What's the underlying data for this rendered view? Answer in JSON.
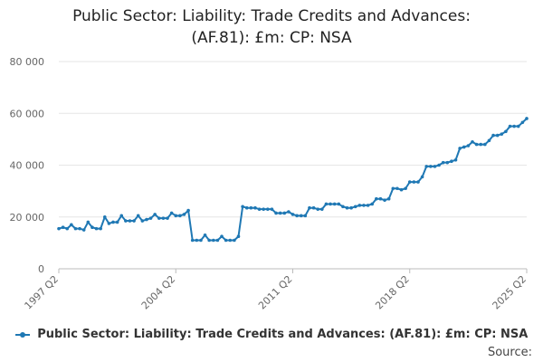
{
  "title_line1": "Public Sector: Liability: Trade Credits and Advances:",
  "title_line2": "(AF.81): £m: CP: NSA",
  "legend_label": "Public Sector: Liability: Trade Credits and Advances: (AF.81): £m: CP: NSA",
  "source_label": "Source:",
  "series_color": "#1f78b4",
  "chart_data": {
    "type": "line",
    "title": "Public Sector: Liability: Trade Credits and Advances: (AF.81): £m: CP: NSA",
    "xlabel": "",
    "ylabel": "",
    "ylim": [
      0,
      80000
    ],
    "yticks": [
      0,
      20000,
      40000,
      60000,
      80000
    ],
    "ytick_labels": [
      "0",
      "20 000",
      "40 000",
      "60 000",
      "80 000"
    ],
    "xtick_labels": [
      "1997 Q2",
      "2004 Q2",
      "2011 Q2",
      "2018 Q2",
      "2025 Q2"
    ],
    "grid": true,
    "legend_position": "bottom",
    "series": [
      {
        "name": "Public Sector: Liability: Trade Credits and Advances: (AF.81): £m: CP: NSA",
        "x_start": "1997 Q2",
        "values": [
          15500,
          16000,
          15500,
          17000,
          15500,
          15500,
          15000,
          18000,
          16000,
          15500,
          15500,
          20000,
          17500,
          18000,
          18000,
          20500,
          18500,
          18500,
          18500,
          20500,
          18500,
          19000,
          19500,
          21000,
          19500,
          19500,
          19500,
          21500,
          20500,
          20500,
          21000,
          22500,
          11000,
          11000,
          11000,
          13000,
          11000,
          11000,
          11000,
          12500,
          11000,
          11000,
          11000,
          12500,
          24000,
          23500,
          23500,
          23500,
          23000,
          23000,
          23000,
          23000,
          21500,
          21500,
          21500,
          22000,
          21000,
          20500,
          20500,
          20500,
          23500,
          23500,
          23000,
          23000,
          25000,
          25000,
          25000,
          25000,
          24000,
          23500,
          23500,
          24000,
          24500,
          24500,
          24500,
          25000,
          27000,
          27000,
          26500,
          27000,
          31000,
          31000,
          30500,
          31000,
          33500,
          33500,
          33500,
          35500,
          39500,
          39500,
          39500,
          40000,
          41000,
          41000,
          41500,
          42000,
          46500,
          47000,
          47500,
          49000,
          48000,
          48000,
          48000,
          49500,
          51500,
          51500,
          52000,
          53000,
          55000,
          55000,
          55000,
          56500,
          58000
        ]
      }
    ]
  }
}
